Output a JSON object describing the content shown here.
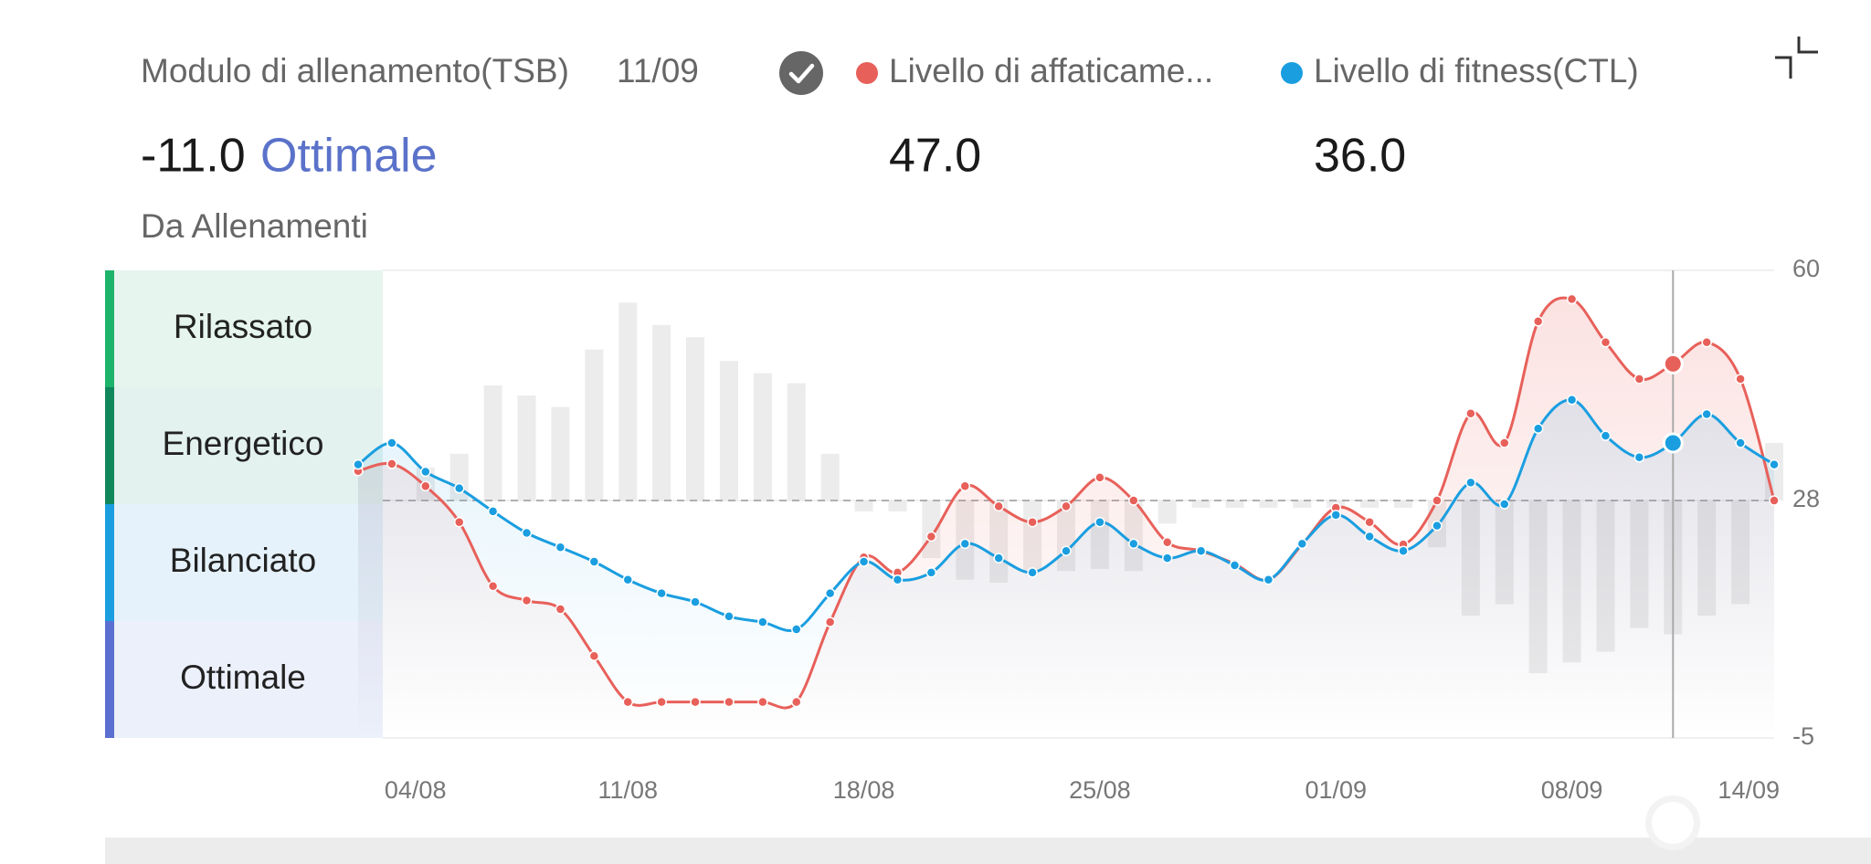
{
  "header": {
    "title": "Modulo di allenamento(TSB)",
    "date": "11/09",
    "tsb_value": "-11.0",
    "tsb_status": "Ottimale",
    "source": "Da Allenamenti",
    "fatigue_value": "47.0",
    "fitness_value": "36.0"
  },
  "chart_data": {
    "type": "line",
    "categories": [
      null,
      "04/08",
      null,
      null,
      null,
      null,
      null,
      null,
      "11/08",
      null,
      null,
      null,
      null,
      null,
      null,
      "18/08",
      null,
      null,
      null,
      null,
      null,
      null,
      "25/08",
      null,
      null,
      null,
      null,
      null,
      null,
      "01/09",
      null,
      null,
      null,
      null,
      null,
      null,
      "08/09",
      null,
      null,
      null,
      null,
      null,
      "14/09"
    ],
    "series": [
      {
        "name": "Livello di affaticame...",
        "color": "#e8605a",
        "values": [
          32.1,
          33.1,
          30,
          25,
          16.1,
          14.1,
          12.9,
          6.4,
          0,
          0,
          0,
          0,
          0,
          0,
          11.1,
          20.1,
          18,
          23,
          30,
          27.2,
          25,
          27.2,
          31.2,
          28,
          22.2,
          21,
          19.2,
          17,
          21.9,
          27,
          25,
          21.9,
          28,
          40.1,
          36,
          52.9,
          56,
          50,
          44.9,
          47,
          50,
          44.9,
          28
        ]
      },
      {
        "name": "Livello di fitness(CTL)",
        "color": "#1a9ee0",
        "values": [
          33,
          36,
          32,
          29.7,
          26.5,
          23.5,
          21.5,
          19.5,
          17,
          15.1,
          13.9,
          11.9,
          11.1,
          10.1,
          15.1,
          19.5,
          17,
          18,
          22,
          20,
          18,
          21,
          25,
          22,
          20,
          21,
          19,
          17,
          22,
          26,
          23,
          21,
          24.5,
          30.5,
          27.5,
          38,
          42,
          37,
          34,
          36,
          40,
          36,
          33
        ]
      }
    ],
    "bars": {
      "color": "#ececec",
      "values": [
        0,
        0,
        4.6,
        6.5,
        16,
        14.6,
        13,
        21,
        27.5,
        24.4,
        22.7,
        19.4,
        17.7,
        16.3,
        6.5,
        -1.5,
        -1.5,
        -8,
        -11,
        -11.4,
        -9.8,
        -9.8,
        -9.5,
        -9.8,
        -3.2,
        -1,
        -1,
        -1,
        -1,
        -1,
        -1,
        -1,
        -6.5,
        -16,
        -14.4,
        -24,
        -22.5,
        -21,
        -17.7,
        -18.6,
        -16,
        -14.4,
        8
      ]
    },
    "reference_line": 28,
    "highlight_index": 39,
    "ylim": [
      -5,
      60
    ],
    "yticks": [
      -5,
      28,
      60
    ],
    "grid": true,
    "zones": [
      {
        "label": "Rilassato",
        "color": "#1db36b",
        "background": "#e6f5ee"
      },
      {
        "label": "Energetico",
        "color": "#11875c",
        "background": "#e3f2ef"
      },
      {
        "label": "Bilanciato",
        "color": "#1a9ee0",
        "background": "#e6f2fb"
      },
      {
        "label": "Ottimale",
        "color": "#5b6fd1",
        "background": "#ecf0fb"
      }
    ]
  }
}
